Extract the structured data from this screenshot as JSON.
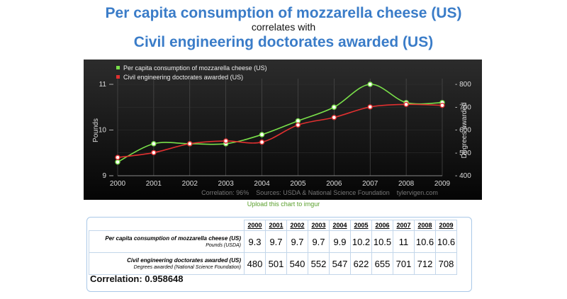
{
  "header": {
    "title1": "Per capita consumption of mozzarella cheese (US)",
    "subtitle": "correlates with",
    "title2": "Civil engineering doctorates awarded (US)"
  },
  "colors": {
    "title": "#3a7cc8",
    "series1": "#7ae04a",
    "series2": "#e03030",
    "link": "#5aa02c"
  },
  "chart_data": {
    "type": "line",
    "x": [
      2000,
      2001,
      2002,
      2003,
      2004,
      2005,
      2006,
      2007,
      2008,
      2009
    ],
    "x_tick_labels": [
      "2000",
      "2001",
      "2002",
      "2003",
      "2004",
      "2005",
      "2006",
      "2007",
      "2008",
      "2009"
    ],
    "series": [
      {
        "name": "Per capita consumption of mozzarella cheese (US)",
        "axis": "left",
        "color": "#7ae04a",
        "values": [
          9.3,
          9.7,
          9.7,
          9.7,
          9.9,
          10.2,
          10.5,
          11,
          10.6,
          10.6
        ]
      },
      {
        "name": "Civil engineering doctorates awarded (US)",
        "axis": "right",
        "color": "#e03030",
        "values": [
          480,
          501,
          540,
          552,
          547,
          622,
          655,
          701,
          712,
          708
        ]
      }
    ],
    "ylabel_left": "Pounds",
    "ylabel_right": "Degrees awarded",
    "ylim_left": [
      9,
      11
    ],
    "ylim_right": [
      400,
      800
    ],
    "left_ticks": [
      "9",
      "10",
      "11"
    ],
    "left_tick_values": [
      9,
      10,
      11
    ],
    "right_ticks": [
      "400",
      "500",
      "600",
      "700",
      "800"
    ],
    "right_tick_values": [
      400,
      500,
      600,
      700,
      800
    ],
    "legend_placement": "top-left",
    "footer": "Correlation: 96%    Sources: USDA & National Science Foundation    tylervigen.com"
  },
  "upload_link": "Upload this chart to imgur",
  "table": {
    "years": [
      "2000",
      "2001",
      "2002",
      "2003",
      "2004",
      "2005",
      "2006",
      "2007",
      "2008",
      "2009"
    ],
    "rows": [
      {
        "label": "Per capita consumption of mozzarella cheese (US)",
        "unit": "Pounds (USDA)",
        "values": [
          "9.3",
          "9.7",
          "9.7",
          "9.7",
          "9.9",
          "10.2",
          "10.5",
          "11",
          "10.6",
          "10.6"
        ]
      },
      {
        "label": "Civil engineering doctorates awarded (US)",
        "unit": "Degrees awarded (National Science Foundation)",
        "values": [
          "480",
          "501",
          "540",
          "552",
          "547",
          "622",
          "655",
          "701",
          "712",
          "708"
        ]
      }
    ],
    "correlation": "Correlation: 0.958648"
  }
}
